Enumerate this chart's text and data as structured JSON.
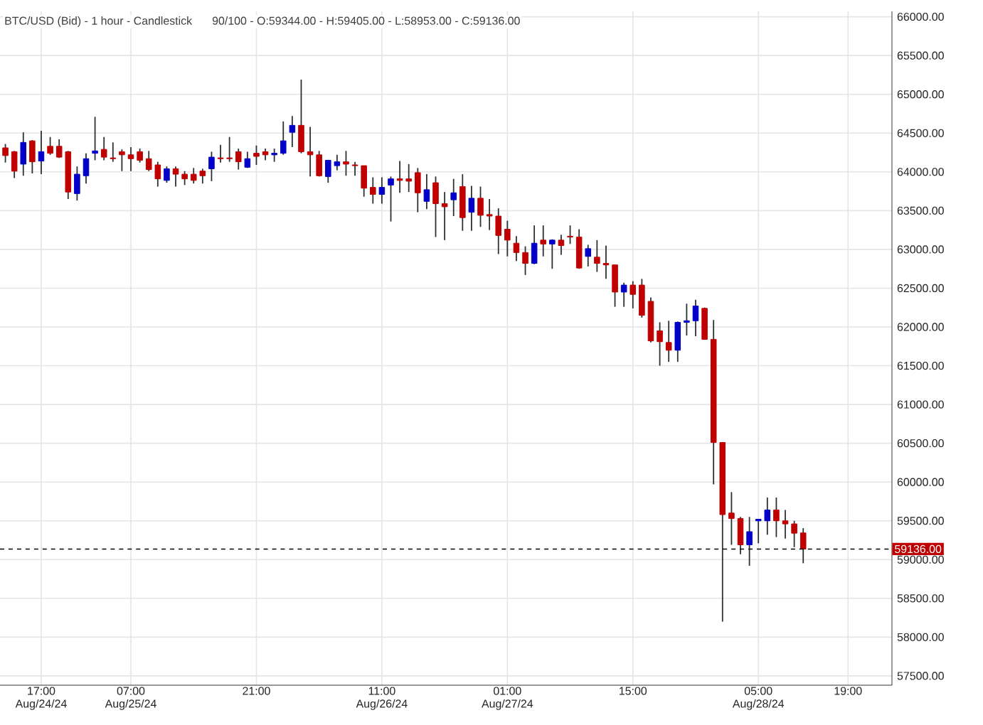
{
  "chart_data": {
    "type": "candlestick",
    "title": "BTC/USD (Bid) - 1 hour - Candlestick",
    "subtitle": "90/100 - O:59344.00 - H:59405.00 - L:58953.00 - C:59136.00",
    "categories": [
      null,
      null,
      null,
      null,
      "17:00 Aug/24/24",
      null,
      null,
      null,
      null,
      null,
      null,
      null,
      null,
      null,
      "07:00 Aug/25/24",
      null,
      null,
      null,
      null,
      null,
      null,
      null,
      null,
      null,
      null,
      null,
      null,
      null,
      "21:00",
      null,
      null,
      null,
      null,
      null,
      null,
      null,
      null,
      null,
      null,
      null,
      null,
      null,
      "11:00 Aug/26/24",
      null,
      null,
      null,
      null,
      null,
      null,
      null,
      null,
      null,
      null,
      null,
      null,
      null,
      "01:00 Aug/27/24",
      null,
      null,
      null,
      null,
      null,
      null,
      null,
      null,
      null,
      null,
      null,
      null,
      null,
      "15:00",
      null,
      null,
      null,
      null,
      null,
      null,
      null,
      null,
      null,
      null,
      null,
      null,
      null,
      "05:00 Aug/28/24",
      null,
      null,
      null,
      null,
      null,
      null,
      null,
      null,
      null,
      "19:00",
      null,
      null,
      null,
      null
    ],
    "ohlc": [
      [
        64310,
        64360,
        64120,
        64210
      ],
      [
        64260,
        64270,
        63920,
        64010
      ],
      [
        64100,
        64510,
        63950,
        64380
      ],
      [
        64400,
        64410,
        63980,
        64130
      ],
      [
        64140,
        64530,
        63970,
        64260
      ],
      [
        64330,
        64450,
        64220,
        64240
      ],
      [
        64330,
        64420,
        64180,
        64190
      ],
      [
        64260,
        64270,
        63650,
        63740
      ],
      [
        63720,
        64070,
        63630,
        63970
      ],
      [
        63950,
        64240,
        63850,
        64170
      ],
      [
        64240,
        64710,
        64150,
        64270
      ],
      [
        64290,
        64450,
        64150,
        64190
      ],
      [
        64180,
        64380,
        64130,
        64170
      ],
      [
        64260,
        64290,
        64010,
        64220
      ],
      [
        64220,
        64320,
        64010,
        64170
      ],
      [
        64260,
        64300,
        64120,
        64150
      ],
      [
        64170,
        64270,
        64010,
        64030
      ],
      [
        64090,
        64130,
        63810,
        63910
      ],
      [
        63890,
        64070,
        63860,
        64040
      ],
      [
        64040,
        64070,
        63810,
        63970
      ],
      [
        63970,
        64010,
        63830,
        63910
      ],
      [
        63970,
        64050,
        63850,
        63890
      ],
      [
        64010,
        64040,
        63850,
        63950
      ],
      [
        64040,
        64260,
        63880,
        64190
      ],
      [
        64180,
        64350,
        64120,
        64170
      ],
      [
        64180,
        64450,
        64130,
        64170
      ],
      [
        64260,
        64300,
        64030,
        64130
      ],
      [
        64060,
        64260,
        64050,
        64170
      ],
      [
        64240,
        64340,
        64090,
        64200
      ],
      [
        64260,
        64300,
        64150,
        64220
      ],
      [
        64220,
        64300,
        64130,
        64240
      ],
      [
        64240,
        64650,
        64220,
        64400
      ],
      [
        64510,
        64720,
        64320,
        64600
      ],
      [
        64600,
        65190,
        64240,
        64260
      ],
      [
        64260,
        64580,
        63940,
        64220
      ],
      [
        64220,
        64270,
        63940,
        63950
      ],
      [
        63940,
        64150,
        63860,
        64150
      ],
      [
        64080,
        64220,
        64020,
        64130
      ],
      [
        64130,
        64270,
        63950,
        64100
      ],
      [
        64090,
        64130,
        63950,
        64080
      ],
      [
        64080,
        64080,
        63680,
        63790
      ],
      [
        63800,
        63930,
        63590,
        63710
      ],
      [
        63710,
        63930,
        63590,
        63800
      ],
      [
        63830,
        63940,
        63360,
        63910
      ],
      [
        63910,
        64140,
        63730,
        63890
      ],
      [
        63910,
        64100,
        63740,
        63880
      ],
      [
        63990,
        64050,
        63480,
        63730
      ],
      [
        63620,
        63970,
        63520,
        63770
      ],
      [
        63860,
        63940,
        63160,
        63590
      ],
      [
        63590,
        63740,
        63120,
        63550
      ],
      [
        63640,
        63910,
        63430,
        63730
      ],
      [
        63810,
        63970,
        63240,
        63410
      ],
      [
        63480,
        63820,
        63240,
        63660
      ],
      [
        63660,
        63810,
        63290,
        63440
      ],
      [
        63450,
        63650,
        63250,
        63430
      ],
      [
        63430,
        63530,
        62940,
        63180
      ],
      [
        63260,
        63370,
        62910,
        63120
      ],
      [
        63080,
        63170,
        62850,
        62960
      ],
      [
        62960,
        63040,
        62670,
        62820
      ],
      [
        62820,
        63310,
        62810,
        63080
      ],
      [
        63120,
        63310,
        62910,
        63070
      ],
      [
        63070,
        63130,
        62750,
        63120
      ],
      [
        63120,
        63190,
        62930,
        63050
      ],
      [
        63170,
        63310,
        63070,
        63160
      ],
      [
        63160,
        63260,
        62750,
        62760
      ],
      [
        62910,
        63060,
        62780,
        63010
      ],
      [
        62900,
        63120,
        62710,
        62820
      ],
      [
        62820,
        63050,
        62620,
        62800
      ],
      [
        62800,
        62800,
        62260,
        62450
      ],
      [
        62450,
        62570,
        62260,
        62540
      ],
      [
        62540,
        62590,
        62240,
        62420
      ],
      [
        62540,
        62620,
        62120,
        62150
      ],
      [
        62330,
        62380,
        61800,
        61820
      ],
      [
        61950,
        62060,
        61500,
        61810
      ],
      [
        61800,
        62080,
        61550,
        61700
      ],
      [
        61700,
        62070,
        61550,
        62060
      ],
      [
        62060,
        62300,
        61890,
        62080
      ],
      [
        62080,
        62350,
        61880,
        62270
      ],
      [
        62240,
        62250,
        61840,
        61840
      ],
      [
        61840,
        62090,
        59970,
        60510
      ],
      [
        60510,
        60510,
        58200,
        59580
      ],
      [
        59600,
        59870,
        59190,
        59530
      ],
      [
        59530,
        59550,
        59070,
        59190
      ],
      [
        59190,
        59550,
        58920,
        59360
      ],
      [
        59500,
        59520,
        59210,
        59520
      ],
      [
        59500,
        59800,
        59320,
        59640
      ],
      [
        59640,
        59800,
        59290,
        59500
      ],
      [
        59500,
        59640,
        59270,
        59460
      ],
      [
        59460,
        59500,
        59160,
        59340
      ],
      [
        59344,
        59405,
        58953,
        59136
      ],
      null,
      null,
      null,
      null,
      null,
      null,
      null,
      null,
      null
    ],
    "colors": [
      "#c00000",
      "#c00000",
      "#0000c8",
      "#c00000",
      "#0000c8",
      "#c00000",
      "#c00000",
      "#c00000",
      "#0000c8",
      "#0000c8",
      "#0000c8",
      "#c00000",
      "#c00000",
      "#c00000",
      "#c00000",
      "#c00000",
      "#c00000",
      "#c00000",
      "#0000c8",
      "#c00000",
      "#c00000",
      "#c00000",
      "#c00000",
      "#0000c8",
      "#c00000",
      "#c00000",
      "#c00000",
      "#0000c8",
      "#c00000",
      "#c00000",
      "#0000c8",
      "#0000c8",
      "#0000c8",
      "#c00000",
      "#c00000",
      "#c00000",
      "#0000c8",
      "#0000c8",
      "#c00000",
      "#c00000",
      "#c00000",
      "#c00000",
      "#0000c8",
      "#0000c8",
      "#c00000",
      "#c00000",
      "#c00000",
      "#0000c8",
      "#c00000",
      "#c00000",
      "#0000c8",
      "#c00000",
      "#0000c8",
      "#c00000",
      "#c00000",
      "#c00000",
      "#c00000",
      "#c00000",
      "#c00000",
      "#0000c8",
      "#c00000",
      "#0000c8",
      "#c00000",
      "#c00000",
      "#c00000",
      "#0000c8",
      "#c00000",
      "#c00000",
      "#c00000",
      "#0000c8",
      "#c00000",
      "#c00000",
      "#c00000",
      "#c00000",
      "#c00000",
      "#0000c8",
      "#0000c8",
      "#0000c8",
      "#c00000",
      "#c00000",
      "#c00000",
      "#c00000",
      "#c00000",
      "#0000c8",
      "#0000c8",
      "#0000c8",
      "#c00000",
      "#c00000",
      "#c00000",
      "#c00000",
      null,
      null,
      null,
      null,
      null,
      null,
      null,
      null,
      null
    ],
    "ylim": [
      57380,
      66070
    ],
    "yticks": [
      {
        "value": 57500,
        "label": "57500.00"
      },
      {
        "value": 58000,
        "label": "58000.00"
      },
      {
        "value": 58500,
        "label": "58500.00"
      },
      {
        "value": 59000,
        "label": "59000.00"
      },
      {
        "value": 59500,
        "label": "59500.00"
      },
      {
        "value": 60000,
        "label": "60000.00"
      },
      {
        "value": 60500,
        "label": "60500.00"
      },
      {
        "value": 61000,
        "label": "61000.00"
      },
      {
        "value": 61500,
        "label": "61500.00"
      },
      {
        "value": 62000,
        "label": "62000.00"
      },
      {
        "value": 62500,
        "label": "62500.00"
      },
      {
        "value": 63000,
        "label": "63000.00"
      },
      {
        "value": 63500,
        "label": "63500.00"
      },
      {
        "value": 64000,
        "label": "64000.00"
      },
      {
        "value": 64500,
        "label": "64500.00"
      },
      {
        "value": 65000,
        "label": "65000.00"
      },
      {
        "value": 65500,
        "label": "65500.00"
      },
      {
        "value": 66000,
        "label": "66000.00"
      }
    ],
    "ref_lines": [
      {
        "axis": "y",
        "value": 59136,
        "label": "59136.00",
        "color": "#000000",
        "line_style": "dashed"
      }
    ],
    "grid": true
  }
}
